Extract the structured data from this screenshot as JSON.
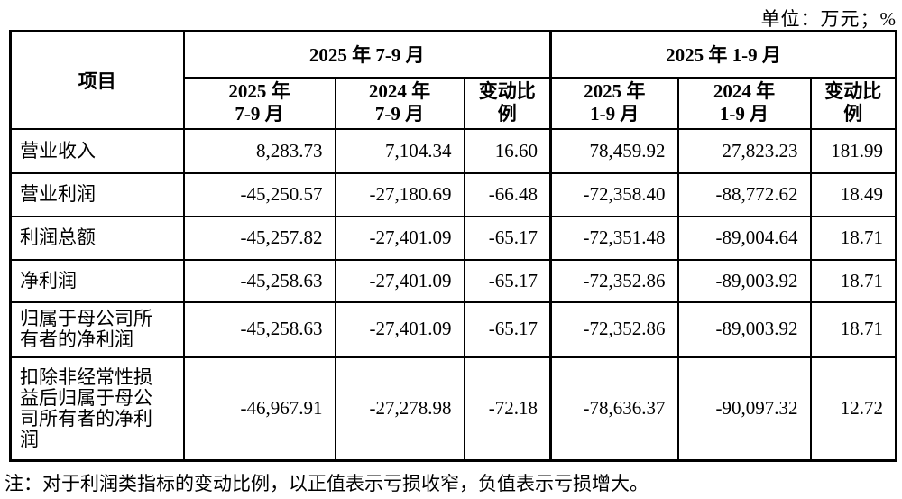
{
  "unit_label": "单位：万元；%",
  "table": {
    "item_header": "项目",
    "groups": [
      {
        "title": "2025 年 7-9 月",
        "columns": [
          {
            "line1": "2025 年",
            "line2": "7-9 月"
          },
          {
            "line1": "2024 年",
            "line2": "7-9 月"
          },
          {
            "line1": "变动比",
            "line2": "例"
          }
        ]
      },
      {
        "title": "2025 年 1-9 月",
        "columns": [
          {
            "line1": "2025 年",
            "line2": "1-9 月"
          },
          {
            "line1": "2024 年",
            "line2": "1-9 月"
          },
          {
            "line1": "变动比",
            "line2": "例"
          }
        ]
      }
    ],
    "rows": [
      {
        "label": "营业收入",
        "values": [
          "8,283.73",
          "7,104.34",
          "16.60",
          "78,459.92",
          "27,823.23",
          "181.99"
        ]
      },
      {
        "label": "营业利润",
        "values": [
          "-45,250.57",
          "-27,180.69",
          "-66.48",
          "-72,358.40",
          "-88,772.62",
          "18.49"
        ]
      },
      {
        "label": "利润总额",
        "values": [
          "-45,257.82",
          "-27,401.09",
          "-65.17",
          "-72,351.48",
          "-89,004.64",
          "18.71"
        ]
      },
      {
        "label": "净利润",
        "values": [
          "-45,258.63",
          "-27,401.09",
          "-65.17",
          "-72,352.86",
          "-89,003.92",
          "18.71"
        ]
      },
      {
        "label": "归属于母公司所有者的净利润",
        "values": [
          "-45,258.63",
          "-27,401.09",
          "-65.17",
          "-72,352.86",
          "-89,003.92",
          "18.71"
        ]
      },
      {
        "label": "扣除非经常性损益后归属于母公司所有者的净利润",
        "values": [
          "-46,967.91",
          "-27,278.98",
          "-72.18",
          "-78,636.37",
          "-90,097.32",
          "12.72"
        ]
      }
    ]
  },
  "note": "注：对于利润类指标的变动比例，以正值表示亏损收窄，负值表示亏损增大。"
}
